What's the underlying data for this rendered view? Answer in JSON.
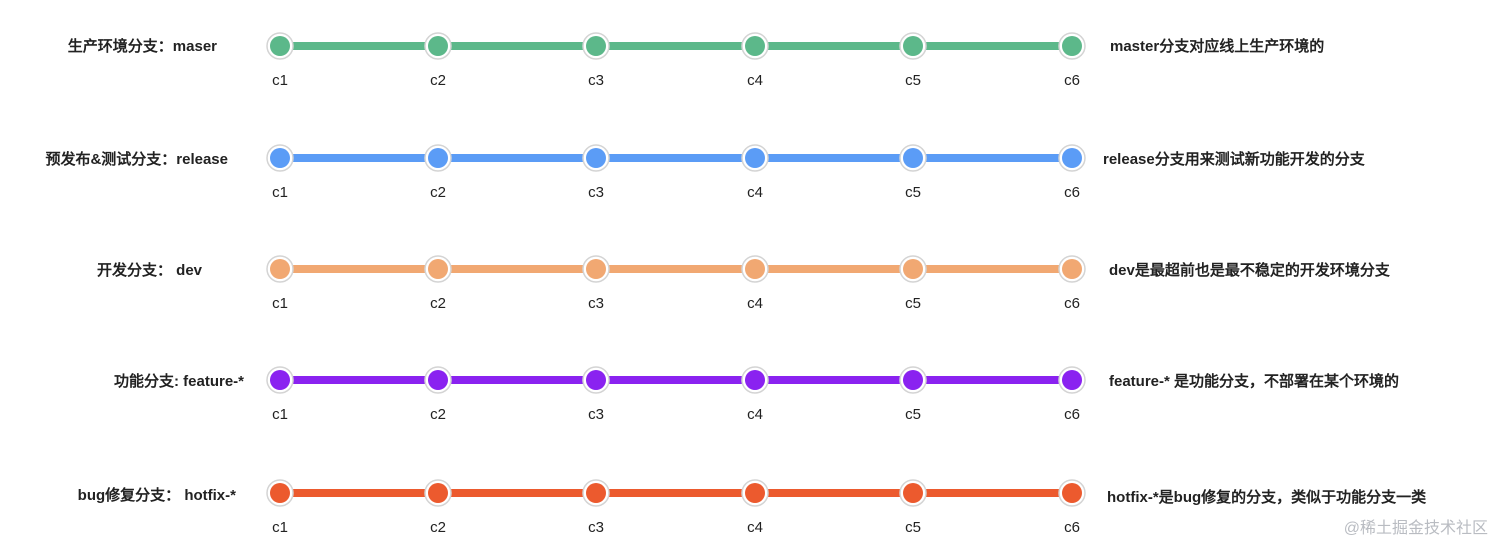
{
  "branches": [
    {
      "label": "生产环境分支：maser",
      "description": "master分支对应线上生产环境的",
      "color": "#5cb88a",
      "commits": [
        "c1",
        "c2",
        "c3",
        "c4",
        "c5",
        "c6"
      ]
    },
    {
      "label": "预发布&测试分支：release",
      "description": "release分支用来测试新功能开发的分支",
      "color": "#5b9cf6",
      "commits": [
        "c1",
        "c2",
        "c3",
        "c4",
        "c5",
        "c6"
      ]
    },
    {
      "label": "开发分支： dev",
      "description": "dev是最超前也是最不稳定的开发环境分支",
      "color": "#f1a872",
      "commits": [
        "c1",
        "c2",
        "c3",
        "c4",
        "c5",
        "c6"
      ]
    },
    {
      "label": "功能分支: feature-*",
      "description": "feature-* 是功能分支，不部署在某个环境的",
      "color": "#8a22f0",
      "commits": [
        "c1",
        "c2",
        "c3",
        "c4",
        "c5",
        "c6"
      ]
    },
    {
      "label": "bug修复分支： hotfix-*",
      "description": "hotfix-*是bug修复的分支，类似于功能分支一类",
      "color": "#ec5a2e",
      "commits": [
        "c1",
        "c2",
        "c3",
        "c4",
        "c5",
        "c6"
      ]
    }
  ],
  "watermark": "@稀土掘金技术社区"
}
